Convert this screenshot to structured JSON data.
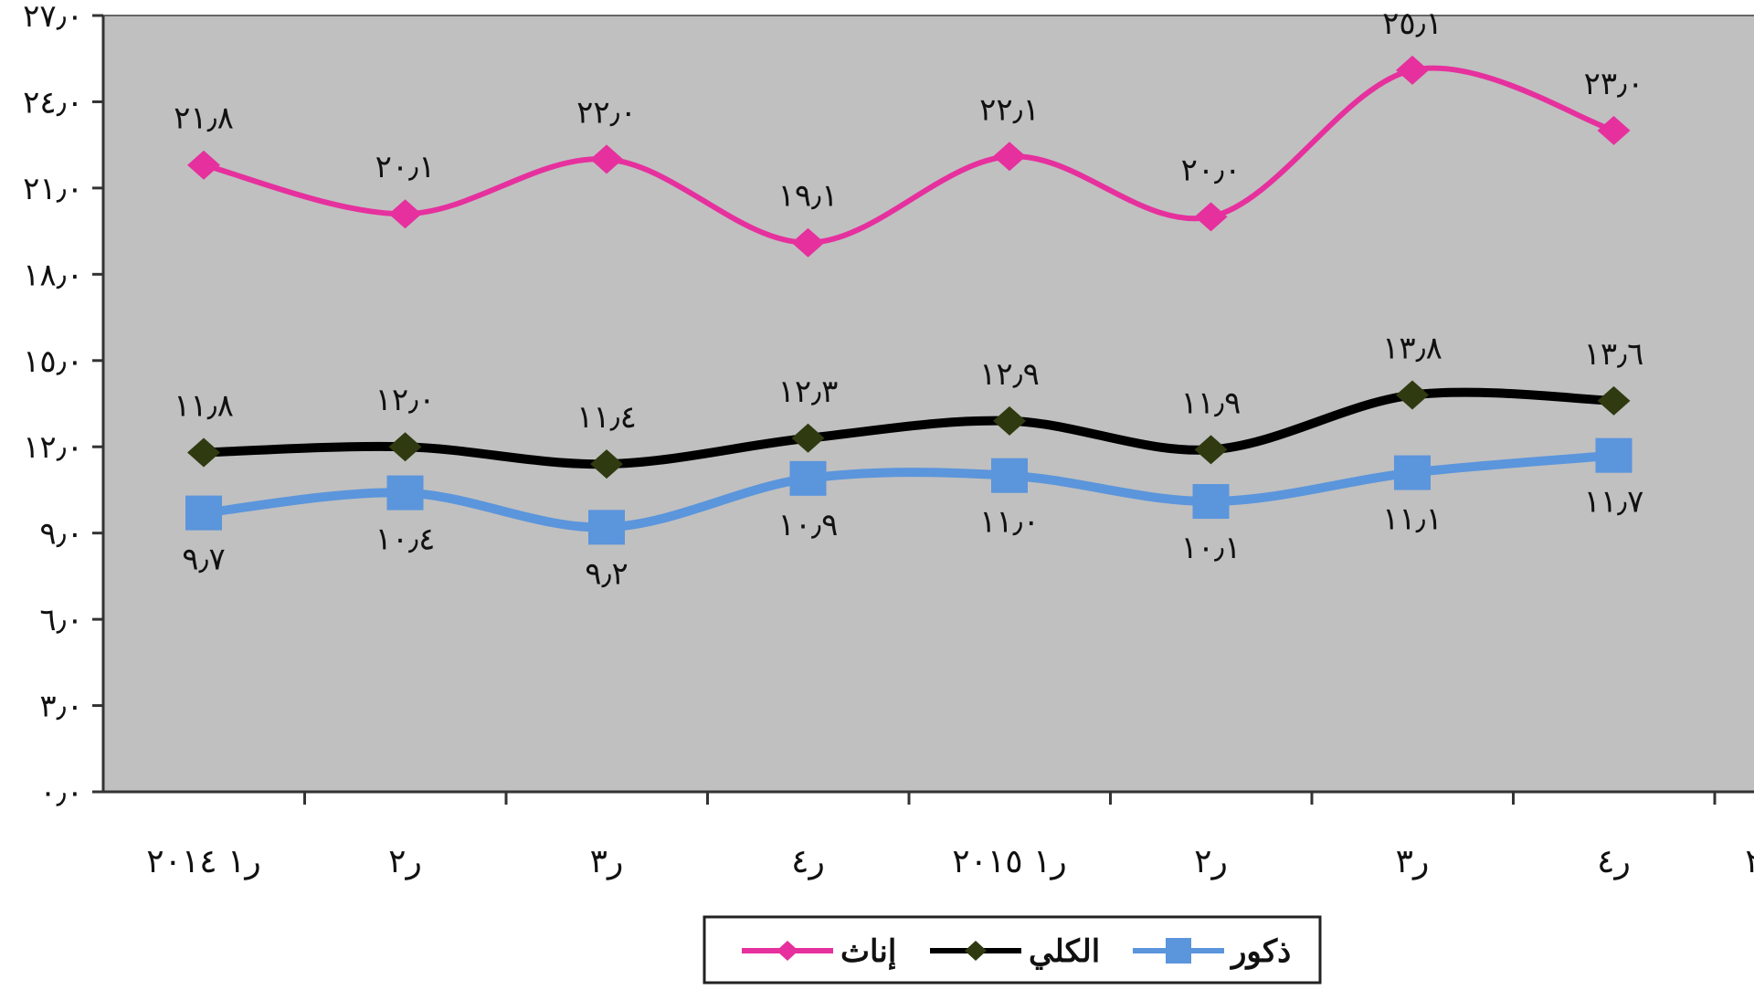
{
  "chart_data": {
    "type": "line",
    "categories": [
      "ر١ ٢٠١٤",
      "ر٢",
      "ر٣",
      "ر٤",
      "ر١ ٢٠١٥",
      "ر٢",
      "ر٣",
      "ر٤"
    ],
    "partial_category": "٢",
    "ylim": [
      0,
      27
    ],
    "yticks": [
      0,
      3,
      6,
      9,
      12,
      15,
      18,
      21,
      24,
      27
    ],
    "ytick_labels": [
      "٠٫٠",
      "٣٫٠",
      "٦٫٠",
      "٩٫٠",
      "١٢٫٠",
      "١٥٫٠",
      "١٨٫٠",
      "٢١٫٠",
      "٢٤٫٠",
      "٢٧٫٠"
    ],
    "grid": false,
    "plot_background": "#c0c0c0",
    "legend_position": "bottom",
    "series": [
      {
        "name": "إناث",
        "color": "#e6309e",
        "marker": "diamond",
        "label_position": "above",
        "values": [
          21.8,
          20.1,
          22.0,
          19.1,
          22.1,
          20.0,
          25.1,
          23.0
        ],
        "labels": [
          "٢١٫٨",
          "٢٠٫١",
          "٢٢٫٠",
          "١٩٫١",
          "٢٢٫١",
          "٢٠٫٠",
          "٢٥٫١",
          "٢٣٫٠"
        ]
      },
      {
        "name": "الكلي",
        "color": "#000000",
        "marker_color": "#2f3a10",
        "marker": "diamond",
        "label_position": "above",
        "values": [
          11.8,
          12.0,
          11.4,
          12.3,
          12.9,
          11.9,
          13.8,
          13.6
        ],
        "labels": [
          "١١٫٨",
          "١٢٫٠",
          "١١٫٤",
          "١٢٫٣",
          "١٢٫٩",
          "١١٫٩",
          "١٣٫٨",
          "١٣٫٦"
        ]
      },
      {
        "name": "ذكور",
        "color": "#5b95dc",
        "marker": "square",
        "label_position": "below",
        "values": [
          9.7,
          10.4,
          9.2,
          10.9,
          11.0,
          10.1,
          11.1,
          11.7
        ],
        "labels": [
          "٩٫٧",
          "١٠٫٤",
          "٩٫٢",
          "١٠٫٩",
          "١١٫٠",
          "١٠٫١",
          "١١٫١",
          "١١٫٧"
        ]
      }
    ]
  }
}
